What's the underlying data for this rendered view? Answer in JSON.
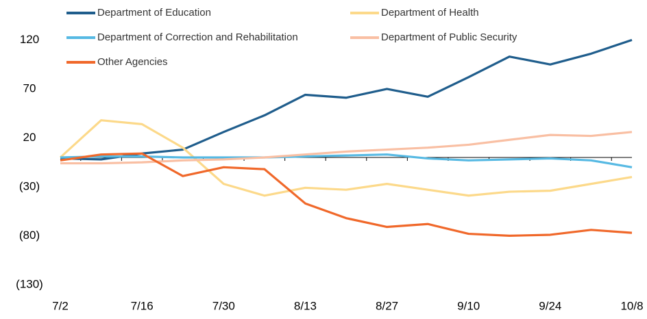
{
  "chart_data": {
    "type": "line",
    "categories": [
      "7/2",
      null,
      "7/16",
      null,
      "7/30",
      null,
      "8/13",
      null,
      "8/27",
      null,
      "9/10",
      null,
      "9/24",
      null,
      "10/8"
    ],
    "series": [
      {
        "name": "Department of Education",
        "color": "#1f5d8c",
        "values": [
          -1,
          -2,
          4,
          8,
          26,
          43,
          64,
          61,
          70,
          62,
          82,
          103,
          95,
          106,
          120
        ]
      },
      {
        "name": "Department of Health",
        "color": "#fcd98a",
        "values": [
          0,
          38,
          34,
          10,
          -27,
          -39,
          -31,
          -33,
          -27,
          -33,
          -39,
          -35,
          -34,
          -27,
          -20
        ]
      },
      {
        "name": "Department of Correction and Rehabilitation",
        "color": "#56b9e3",
        "values": [
          0,
          1,
          1,
          0,
          0,
          0,
          1,
          2,
          3,
          -1,
          -3,
          -2,
          -1,
          -3,
          -10
        ]
      },
      {
        "name": "Department of Public Security",
        "color": "#f9bfa3",
        "values": [
          -6,
          -6,
          -5,
          -3,
          -2,
          0,
          3,
          6,
          8,
          10,
          13,
          18,
          23,
          22,
          26
        ]
      },
      {
        "name": "Other Agencies",
        "color": "#f0682a",
        "values": [
          -3,
          3,
          4,
          -19,
          -10,
          -12,
          -47,
          -62,
          -71,
          -68,
          -78,
          -80,
          -79,
          -74,
          -77
        ]
      }
    ],
    "ylim": [
      -130,
      120
    ],
    "yticks": [
      120,
      70,
      20,
      {
        "value": -30,
        "label": "(30)"
      },
      {
        "value": -80,
        "label": "(80)"
      },
      {
        "value": -130,
        "label": "(130)"
      }
    ]
  }
}
